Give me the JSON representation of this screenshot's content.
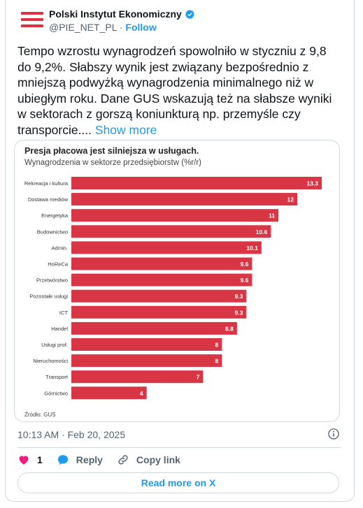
{
  "author": {
    "name": "Polski Instytut Ekonomiczny",
    "handle": "@PIE_NET_PL",
    "separator": "·",
    "follow_label": "Follow"
  },
  "tweet": {
    "text": "Tempo wzrostu wynagrodzeń spowolniło w styczniu z 9,8 do 9,2%. Słabszy wynik jest związany bezpośrednio z mniejszą podwyżką wynagrodzenia minimalnego niż w ubiegłym roku. Dane GUS wskazują też na słabsze wyniki w sektorach z gorszą koniunkturą np. przemyśle czy transporcie....",
    "show_more_label": "Show more",
    "timestamp": "10:13 AM · Feb 20, 2025"
  },
  "actions": {
    "like_count": "1",
    "reply_label": "Reply",
    "copy_link_label": "Copy link",
    "read_more_label": "Read more on X"
  },
  "colors": {
    "bar": "#d83545",
    "accent": "#1d9bf0",
    "like": "#f91880"
  },
  "icons": [
    "verified-badge-icon",
    "heart-icon",
    "reply-icon",
    "link-icon",
    "info-icon"
  ],
  "chart_data": {
    "type": "bar",
    "orientation": "horizontal",
    "title": "Presja płacowa jest silniejsza w usługach.",
    "subtitle": "Wynagrodzenia w sektorze przedsiębiorstw (%r/r)",
    "source": "Źródło: GUS",
    "categories": [
      "Rekreacja i kultura",
      "Dostawa mediów",
      "Energetyka",
      "Budownictwo",
      "Admin.",
      "HoReCa",
      "Przetwórstwo",
      "Pozostałe usługi",
      "ICT",
      "Handel",
      "Usługi prof.",
      "Nieruchomości",
      "Transport",
      "Górnictwo"
    ],
    "values": [
      13.3,
      12,
      11,
      10.6,
      10.1,
      9.6,
      9.6,
      9.3,
      9.3,
      8.8,
      8,
      8,
      7,
      4
    ],
    "value_labels": [
      "13.3",
      "12",
      "11",
      "10.6",
      "10.1",
      "9.6",
      "9.6",
      "9.3",
      "9.3",
      "8.8",
      "8",
      "8",
      "7",
      "4"
    ],
    "xlim": [
      0,
      13.3
    ]
  }
}
